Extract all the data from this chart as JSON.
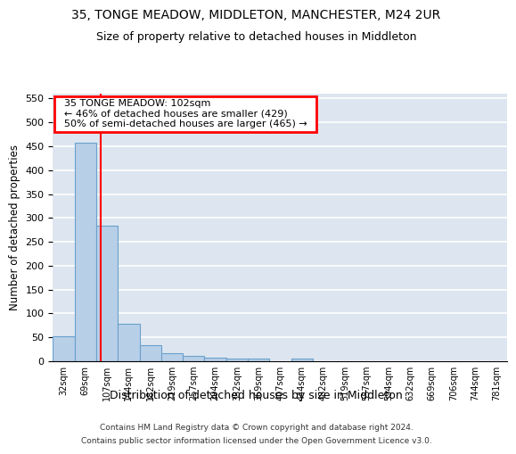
{
  "title": "35, TONGE MEADOW, MIDDLETON, MANCHESTER, M24 2UR",
  "subtitle": "Size of property relative to detached houses in Middleton",
  "xlabel": "Distribution of detached houses by size in Middleton",
  "ylabel": "Number of detached properties",
  "categories": [
    "32sqm",
    "69sqm",
    "107sqm",
    "144sqm",
    "182sqm",
    "219sqm",
    "257sqm",
    "294sqm",
    "332sqm",
    "369sqm",
    "407sqm",
    "444sqm",
    "482sqm",
    "519sqm",
    "557sqm",
    "594sqm",
    "632sqm",
    "669sqm",
    "706sqm",
    "744sqm",
    "781sqm"
  ],
  "values": [
    53,
    457,
    283,
    78,
    33,
    16,
    12,
    8,
    6,
    6,
    0,
    6,
    0,
    0,
    0,
    0,
    0,
    0,
    0,
    0,
    0
  ],
  "bar_color": "#b8cfe8",
  "bar_edge_color": "#6aa0cc",
  "annotation_text": "  35 TONGE MEADOW: 102sqm  \n  ← 46% of detached houses are smaller (429)  \n  50% of semi-detached houses are larger (465) →  ",
  "annotation_box_color": "white",
  "annotation_box_edge_color": "red",
  "vline_color": "red",
  "vline_x_index": 1.72,
  "ylim": [
    0,
    560
  ],
  "yticks": [
    0,
    50,
    100,
    150,
    200,
    250,
    300,
    350,
    400,
    450,
    500,
    550
  ],
  "background_color": "#dde6f0",
  "footer_line1": "Contains HM Land Registry data © Crown copyright and database right 2024.",
  "footer_line2": "Contains public sector information licensed under the Open Government Licence v3.0.",
  "title_fontsize": 10,
  "subtitle_fontsize": 9,
  "xlabel_fontsize": 9,
  "ylabel_fontsize": 8.5,
  "annotation_fontsize": 8
}
